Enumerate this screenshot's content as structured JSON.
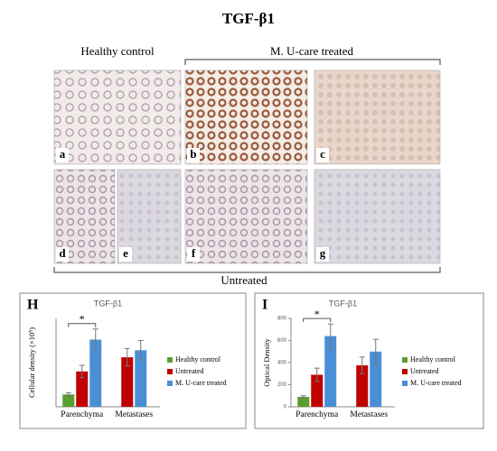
{
  "figure": {
    "title": "TGF-β1",
    "group_labels": [
      "Healthy control",
      "M. U-care treated",
      "Untreated"
    ],
    "panels": [
      "a",
      "b",
      "c",
      "d",
      "e",
      "f",
      "g"
    ]
  },
  "chart_data": [
    {
      "type": "bar",
      "panel_label": "H",
      "title": "TGF-β1",
      "ylabel": "Cellular density (×10⁵)",
      "categories": [
        "Parenchyma",
        "Metastases"
      ],
      "ylim": [
        0,
        5
      ],
      "annotation": "*",
      "series": [
        {
          "name": "Healthy control",
          "color": "#5a9e2f",
          "values": [
            0.7,
            null
          ],
          "errors": [
            0.1,
            null
          ]
        },
        {
          "name": "Untreated",
          "color": "#c00000",
          "values": [
            2.0,
            2.8
          ],
          "errors": [
            0.35,
            0.5
          ]
        },
        {
          "name": "M. U-care treated",
          "color": "#4a8fd6",
          "values": [
            3.8,
            3.2
          ],
          "errors": [
            0.6,
            0.55
          ]
        }
      ]
    },
    {
      "type": "bar",
      "panel_label": "I",
      "title": "TGF-β1",
      "ylabel": "Optical Density",
      "categories": [
        "Parenchyma",
        "Metastases"
      ],
      "ylim": [
        0,
        800
      ],
      "yticks": [
        0,
        200,
        400,
        600,
        800
      ],
      "annotation": "*",
      "series": [
        {
          "name": "Healthy control",
          "color": "#5a9e2f",
          "values": [
            90,
            null
          ],
          "errors": [
            10,
            null
          ]
        },
        {
          "name": "Untreated",
          "color": "#c00000",
          "values": [
            290,
            375
          ],
          "errors": [
            60,
            75
          ]
        },
        {
          "name": "M. U-care treated",
          "color": "#4a8fd6",
          "values": [
            640,
            500
          ],
          "errors": [
            110,
            110
          ]
        }
      ]
    }
  ]
}
